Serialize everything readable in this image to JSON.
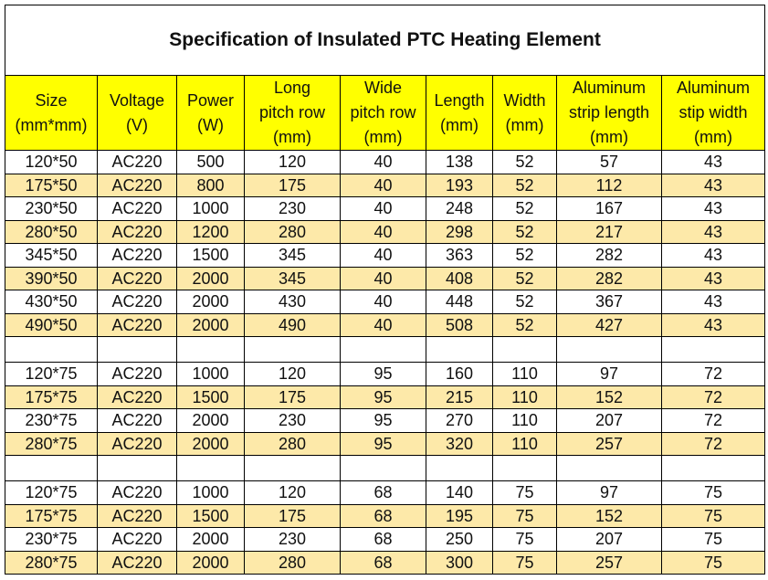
{
  "title": "Specification of Insulated PTC Heating Element",
  "columns": [
    {
      "line1": "Size",
      "line2": "(mm*mm)",
      "line3": ""
    },
    {
      "line1": "Voltage",
      "line2": "(V)",
      "line3": ""
    },
    {
      "line1": "Power",
      "line2": "(W)",
      "line3": ""
    },
    {
      "line1": "Long",
      "line2": "pitch row",
      "line3": "(mm)"
    },
    {
      "line1": "Wide",
      "line2": "pitch row",
      "line3": "(mm)"
    },
    {
      "line1": "Length",
      "line2": "(mm)",
      "line3": ""
    },
    {
      "line1": "Width",
      "line2": "(mm)",
      "line3": ""
    },
    {
      "line1": "Aluminum",
      "line2": "strip length",
      "line3": "(mm)"
    },
    {
      "line1": "Aluminum",
      "line2": "stip width",
      "line3": "(mm)"
    }
  ],
  "rows": [
    [
      "120*50",
      "AC220",
      "500",
      "120",
      "40",
      "138",
      "52",
      "57",
      "43"
    ],
    [
      "175*50",
      "AC220",
      "800",
      "175",
      "40",
      "193",
      "52",
      "112",
      "43"
    ],
    [
      "230*50",
      "AC220",
      "1000",
      "230",
      "40",
      "248",
      "52",
      "167",
      "43"
    ],
    [
      "280*50",
      "AC220",
      "1200",
      "280",
      "40",
      "298",
      "52",
      "217",
      "43"
    ],
    [
      "345*50",
      "AC220",
      "1500",
      "345",
      "40",
      "363",
      "52",
      "282",
      "43"
    ],
    [
      "390*50",
      "AC220",
      "2000",
      "345",
      "40",
      "408",
      "52",
      "282",
      "43"
    ],
    [
      "430*50",
      "AC220",
      "2000",
      "430",
      "40",
      "448",
      "52",
      "367",
      "43"
    ],
    [
      "490*50",
      "AC220",
      "2000",
      "490",
      "40",
      "508",
      "52",
      "427",
      "43"
    ],
    [
      "",
      "",
      "",
      "",
      "",
      "",
      "",
      "",
      ""
    ],
    [
      "120*75",
      "AC220",
      "1000",
      "120",
      "95",
      "160",
      "110",
      "97",
      "72"
    ],
    [
      "175*75",
      "AC220",
      "1500",
      "175",
      "95",
      "215",
      "110",
      "152",
      "72"
    ],
    [
      "230*75",
      "AC220",
      "2000",
      "230",
      "95",
      "270",
      "110",
      "207",
      "72"
    ],
    [
      "280*75",
      "AC220",
      "2000",
      "280",
      "95",
      "320",
      "110",
      "257",
      "72"
    ],
    [
      "",
      "",
      "",
      "",
      "",
      "",
      "",
      "",
      ""
    ],
    [
      "120*75",
      "AC220",
      "1000",
      "120",
      "68",
      "140",
      "75",
      "97",
      "75"
    ],
    [
      "175*75",
      "AC220",
      "1500",
      "175",
      "68",
      "195",
      "75",
      "152",
      "75"
    ],
    [
      "230*75",
      "AC220",
      "2000",
      "230",
      "68",
      "250",
      "75",
      "207",
      "75"
    ],
    [
      "280*75",
      "AC220",
      "2000",
      "280",
      "68",
      "300",
      "75",
      "257",
      "75"
    ]
  ],
  "row_styles": [
    "odd",
    "even",
    "odd",
    "even",
    "odd",
    "even",
    "odd",
    "even",
    "blank",
    "odd",
    "even",
    "odd",
    "even",
    "blank",
    "odd",
    "even",
    "odd",
    "even"
  ],
  "colors": {
    "header_bg": "#ffff00",
    "alt_row_bg": "#fde9a9",
    "row_bg": "#ffffff",
    "border": "#000000"
  }
}
